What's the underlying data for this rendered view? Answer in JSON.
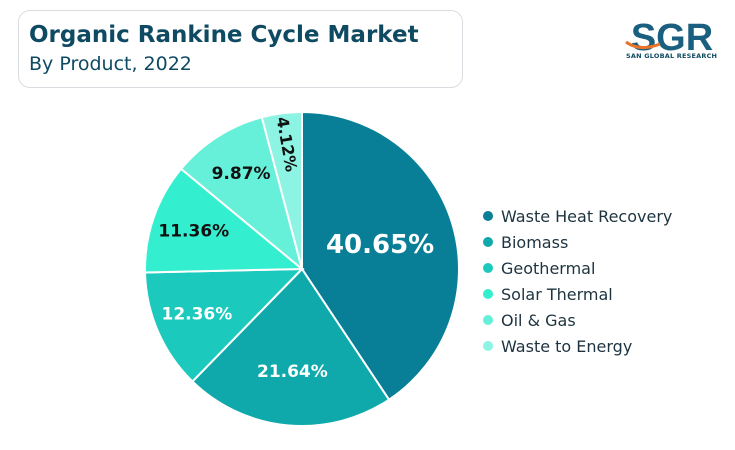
{
  "header": {
    "title": "Organic Rankine Cycle Market",
    "subtitle": "By Product, 2022"
  },
  "logo": {
    "letters": "SGR",
    "tagline": "SAN GLOBAL RESEARCH",
    "colors": {
      "letters": "#1a5f80",
      "accent": "#e8752a"
    }
  },
  "chart_data": {
    "type": "pie",
    "title": "Organic Rankine Cycle Market",
    "subtitle": "By Product, 2022",
    "legend_position": "right",
    "start_angle_deg": 0,
    "direction": "clockwise",
    "slices": [
      {
        "label": "Waste Heat Recovery",
        "value": 40.65,
        "display": "40.65%",
        "color": "#087f97"
      },
      {
        "label": "Biomass",
        "value": 21.64,
        "display": "21.64%",
        "color": "#0fa9ab"
      },
      {
        "label": "Geothermal",
        "value": 12.36,
        "display": "12.36%",
        "color": "#1cc9bd"
      },
      {
        "label": "Solar Thermal",
        "value": 11.36,
        "display": "11.36%",
        "color": "#33efd0"
      },
      {
        "label": "Oil & Gas",
        "value": 9.87,
        "display": "9.87%",
        "color": "#67f0d9"
      },
      {
        "label": "Waste to Energy",
        "value": 4.12,
        "display": "4.12%",
        "color": "#8df3e3"
      }
    ]
  }
}
